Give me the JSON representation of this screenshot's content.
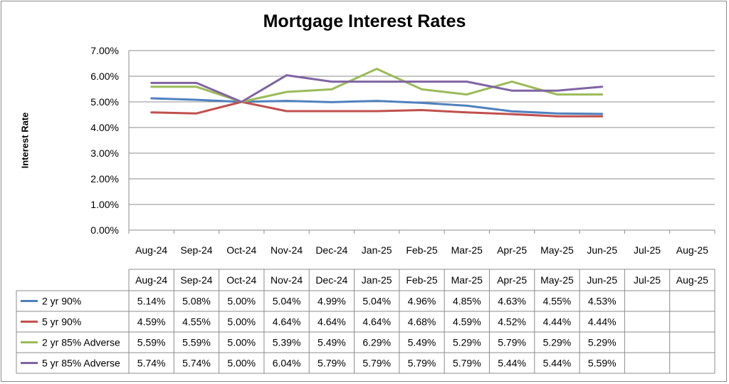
{
  "chart_data": {
    "type": "line",
    "title": "Mortgage Interest Rates",
    "xlabel": "",
    "ylabel": "Interest Rate",
    "ylim": [
      0,
      7
    ],
    "yticks": [
      "0.00%",
      "1.00%",
      "2.00%",
      "3.00%",
      "4.00%",
      "5.00%",
      "6.00%",
      "7.00%"
    ],
    "categories": [
      "Aug-24",
      "Sep-24",
      "Oct-24",
      "Nov-24",
      "Dec-24",
      "Jan-25",
      "Feb-25",
      "Mar-25",
      "Apr-25",
      "May-25",
      "Jun-25",
      "Jul-25",
      "Aug-25"
    ],
    "grid": true,
    "legend": "data-table",
    "series": [
      {
        "name": "2 yr 90%",
        "color": "#4f81bd",
        "values": [
          5.14,
          5.08,
          5.0,
          5.04,
          4.99,
          5.04,
          4.96,
          4.85,
          4.63,
          4.55,
          4.53,
          null,
          null
        ],
        "labels": [
          "5.14%",
          "5.08%",
          "5.00%",
          "5.04%",
          "4.99%",
          "5.04%",
          "4.96%",
          "4.85%",
          "4.63%",
          "4.55%",
          "4.53%",
          "",
          ""
        ]
      },
      {
        "name": "5 yr 90%",
        "color": "#c0504d",
        "values": [
          4.59,
          4.55,
          5.0,
          4.64,
          4.64,
          4.64,
          4.68,
          4.59,
          4.52,
          4.44,
          4.44,
          null,
          null
        ],
        "labels": [
          "4.59%",
          "4.55%",
          "5.00%",
          "4.64%",
          "4.64%",
          "4.64%",
          "4.68%",
          "4.59%",
          "4.52%",
          "4.44%",
          "4.44%",
          "",
          ""
        ]
      },
      {
        "name": "2 yr 85% Adverse",
        "color": "#9bbb59",
        "values": [
          5.59,
          5.59,
          5.0,
          5.39,
          5.49,
          6.29,
          5.49,
          5.29,
          5.79,
          5.29,
          5.29,
          null,
          null
        ],
        "labels": [
          "5.59%",
          "5.59%",
          "5.00%",
          "5.39%",
          "5.49%",
          "6.29%",
          "5.49%",
          "5.29%",
          "5.79%",
          "5.29%",
          "5.29%",
          "",
          ""
        ]
      },
      {
        "name": "5 yr 85% Adverse",
        "color": "#8064a2",
        "values": [
          5.74,
          5.74,
          5.0,
          6.04,
          5.79,
          5.79,
          5.79,
          5.79,
          5.44,
          5.44,
          5.59,
          null,
          null
        ],
        "labels": [
          "5.74%",
          "5.74%",
          "5.00%",
          "6.04%",
          "5.79%",
          "5.79%",
          "5.79%",
          "5.79%",
          "5.44%",
          "5.44%",
          "5.59%",
          "",
          ""
        ]
      }
    ]
  }
}
